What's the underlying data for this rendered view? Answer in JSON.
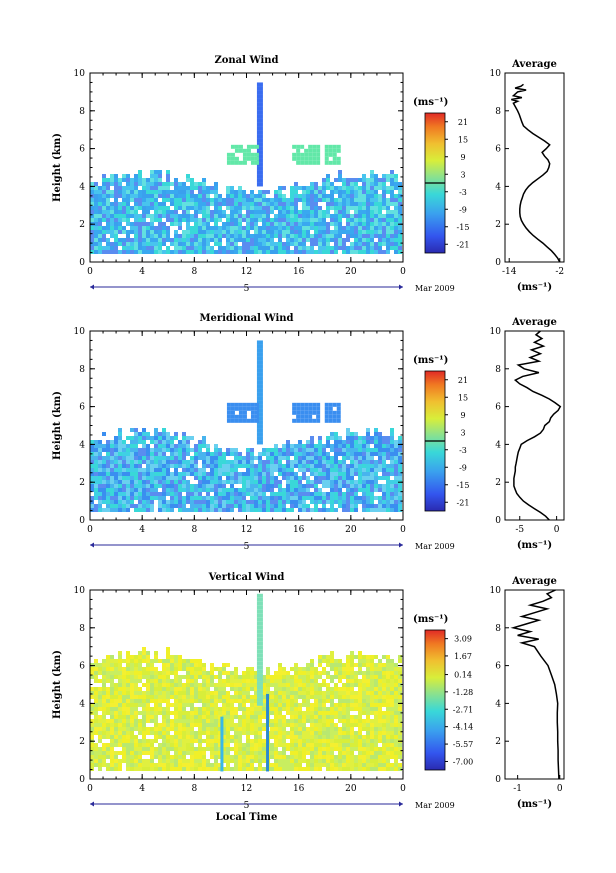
{
  "chart_data": [
    {
      "type": "heatmap",
      "title": "Zonal Wind",
      "ylabel": "Height (km)",
      "xticks": [
        "0",
        "4",
        "8",
        "12",
        "16",
        "20",
        "0"
      ],
      "yticks": [
        "0",
        "2",
        "4",
        "6",
        "8",
        "10"
      ],
      "xlim": [
        0,
        24
      ],
      "ylim": [
        0,
        10
      ],
      "date_day": "5",
      "date_label": "Mar 2009",
      "colorbar": {
        "unit": "(ms⁻¹)",
        "ticks": [
          "21",
          "15",
          "9",
          "3",
          "-3",
          "-9",
          "-15",
          "-21"
        ],
        "range": [
          -24,
          24
        ],
        "contour_level": 0
      },
      "average_panel": {
        "title": "Average",
        "xticks": [
          "-14",
          "-2"
        ],
        "xtick_values": [
          -14,
          -2
        ],
        "xlim": [
          -15,
          -1
        ],
        "xlabel": "(ms⁻¹)",
        "yticks": [
          "0",
          "2",
          "4",
          "6",
          "8",
          "10"
        ],
        "profile": [
          [
            0.0,
            -2.0
          ],
          [
            0.2,
            -2.5
          ],
          [
            0.4,
            -3.2
          ],
          [
            0.6,
            -4.0
          ],
          [
            0.8,
            -5.0
          ],
          [
            1.0,
            -6.0
          ],
          [
            1.2,
            -7.2
          ],
          [
            1.4,
            -8.3
          ],
          [
            1.6,
            -9.2
          ],
          [
            1.8,
            -10.0
          ],
          [
            2.0,
            -10.6
          ],
          [
            2.2,
            -11.1
          ],
          [
            2.4,
            -11.4
          ],
          [
            2.6,
            -11.5
          ],
          [
            2.8,
            -11.5
          ],
          [
            3.0,
            -11.4
          ],
          [
            3.2,
            -11.2
          ],
          [
            3.4,
            -10.9
          ],
          [
            3.6,
            -10.6
          ],
          [
            3.8,
            -10.1
          ],
          [
            4.0,
            -9.4
          ],
          [
            4.2,
            -8.4
          ],
          [
            4.4,
            -7.2
          ],
          [
            4.6,
            -6.0
          ],
          [
            4.8,
            -5.0
          ],
          [
            5.0,
            -4.6
          ],
          [
            5.2,
            -4.4
          ],
          [
            5.4,
            -4.8
          ],
          [
            5.6,
            -5.6
          ],
          [
            5.8,
            -6.2
          ],
          [
            6.0,
            -5.2
          ],
          [
            6.2,
            -4.4
          ],
          [
            6.4,
            -5.6
          ],
          [
            6.6,
            -7.0
          ],
          [
            6.8,
            -8.4
          ],
          [
            7.0,
            -9.6
          ],
          [
            7.2,
            -10.6
          ],
          [
            7.4,
            -11.0
          ],
          [
            7.6,
            -11.3
          ],
          [
            7.8,
            -11.6
          ],
          [
            8.0,
            -12.0
          ],
          [
            8.2,
            -12.5
          ],
          [
            8.4,
            -13.0
          ],
          [
            8.5,
            -12.0
          ],
          [
            8.6,
            -13.5
          ],
          [
            8.7,
            -11.0
          ],
          [
            8.8,
            -13.0
          ],
          [
            9.0,
            -12.0
          ],
          [
            9.1,
            -10.0
          ],
          [
            9.2,
            -12.6
          ],
          [
            9.3,
            -11.2
          ],
          [
            9.4,
            -10.6
          ]
        ]
      }
    },
    {
      "type": "heatmap",
      "title": "Meridional Wind",
      "ylabel": "Height (km)",
      "xticks": [
        "0",
        "4",
        "8",
        "12",
        "16",
        "20",
        "0"
      ],
      "yticks": [
        "0",
        "2",
        "4",
        "6",
        "8",
        "10"
      ],
      "xlim": [
        0,
        24
      ],
      "ylim": [
        0,
        10
      ],
      "date_day": "5",
      "date_label": "Mar 2009",
      "colorbar": {
        "unit": "(ms⁻¹)",
        "ticks": [
          "21",
          "15",
          "9",
          "3",
          "-3",
          "-9",
          "-15",
          "-21"
        ],
        "range": [
          -24,
          24
        ],
        "contour_level": 0
      },
      "average_panel": {
        "title": "Average",
        "xticks": [
          "-5",
          "0"
        ],
        "xtick_values": [
          -5,
          0
        ],
        "xlim": [
          -7,
          1
        ],
        "xlabel": "(ms⁻¹)",
        "yticks": [
          "0",
          "2",
          "4",
          "6",
          "8",
          "10"
        ],
        "profile": [
          [
            0.0,
            -1.0
          ],
          [
            0.2,
            -1.5
          ],
          [
            0.4,
            -2.2
          ],
          [
            0.6,
            -3.0
          ],
          [
            0.8,
            -3.8
          ],
          [
            1.0,
            -4.5
          ],
          [
            1.2,
            -5.0
          ],
          [
            1.4,
            -5.4
          ],
          [
            1.6,
            -5.6
          ],
          [
            1.8,
            -5.8
          ],
          [
            2.0,
            -5.8
          ],
          [
            2.2,
            -5.8
          ],
          [
            2.4,
            -5.7
          ],
          [
            2.6,
            -5.6
          ],
          [
            2.8,
            -5.6
          ],
          [
            3.0,
            -5.5
          ],
          [
            3.2,
            -5.4
          ],
          [
            3.4,
            -5.3
          ],
          [
            3.6,
            -5.2
          ],
          [
            3.8,
            -5.0
          ],
          [
            4.0,
            -4.8
          ],
          [
            4.2,
            -4.0
          ],
          [
            4.4,
            -3.0
          ],
          [
            4.6,
            -2.2
          ],
          [
            4.8,
            -1.8
          ],
          [
            5.0,
            -1.6
          ],
          [
            5.2,
            -1.0
          ],
          [
            5.4,
            -0.8
          ],
          [
            5.6,
            -0.4
          ],
          [
            5.8,
            0.2
          ],
          [
            6.0,
            0.5
          ],
          [
            6.2,
            -0.2
          ],
          [
            6.4,
            -1.0
          ],
          [
            6.6,
            -2.0
          ],
          [
            6.8,
            -3.2
          ],
          [
            7.0,
            -4.0
          ],
          [
            7.2,
            -5.0
          ],
          [
            7.4,
            -5.6
          ],
          [
            7.6,
            -4.6
          ],
          [
            7.8,
            -2.4
          ],
          [
            8.0,
            -4.4
          ],
          [
            8.2,
            -5.2
          ],
          [
            8.4,
            -2.4
          ],
          [
            8.6,
            -3.6
          ],
          [
            8.8,
            -2.2
          ],
          [
            9.0,
            -3.4
          ],
          [
            9.2,
            -1.8
          ],
          [
            9.4,
            -3.0
          ],
          [
            9.6,
            -2.0
          ],
          [
            9.8,
            -2.8
          ],
          [
            10.0,
            -2.2
          ]
        ]
      }
    },
    {
      "type": "heatmap",
      "title": "Vertical Wind",
      "ylabel": "Height (km)",
      "xlabel": "Local Time",
      "xticks": [
        "0",
        "4",
        "8",
        "12",
        "16",
        "20",
        "0"
      ],
      "yticks": [
        "0",
        "2",
        "4",
        "6",
        "8",
        "10"
      ],
      "xlim": [
        0,
        24
      ],
      "ylim": [
        0,
        10
      ],
      "date_day": "5",
      "date_label": "Mar 2009",
      "colorbar": {
        "unit": "(ms⁻¹)",
        "ticks": [
          "3.09",
          "1.67",
          "0.14",
          "-1.28",
          "-2.71",
          "-4.14",
          "-5.57",
          "-7.00"
        ],
        "range": [
          -7.7,
          3.8
        ]
      },
      "average_panel": {
        "title": "Average",
        "xticks": [
          "-1",
          "0"
        ],
        "xtick_values": [
          -1,
          0
        ],
        "xlim": [
          -1.3,
          0.1
        ],
        "xlabel": "(ms⁻¹)",
        "yticks": [
          "0",
          "2",
          "4",
          "6",
          "8",
          "10"
        ],
        "profile": [
          [
            0.0,
            -0.02
          ],
          [
            0.5,
            -0.03
          ],
          [
            1.0,
            -0.04
          ],
          [
            1.5,
            -0.04
          ],
          [
            2.0,
            -0.05
          ],
          [
            2.5,
            -0.05
          ],
          [
            3.0,
            -0.06
          ],
          [
            3.5,
            -0.06
          ],
          [
            4.0,
            -0.05
          ],
          [
            4.5,
            -0.08
          ],
          [
            5.0,
            -0.12
          ],
          [
            5.5,
            -0.2
          ],
          [
            6.0,
            -0.28
          ],
          [
            6.5,
            -0.45
          ],
          [
            7.0,
            -0.6
          ],
          [
            7.2,
            -0.9
          ],
          [
            7.4,
            -0.5
          ],
          [
            7.6,
            -1.0
          ],
          [
            7.8,
            -0.7
          ],
          [
            8.0,
            -1.1
          ],
          [
            8.2,
            -0.8
          ],
          [
            8.4,
            -0.5
          ],
          [
            8.6,
            -0.9
          ],
          [
            8.8,
            -0.6
          ],
          [
            9.0,
            -0.3
          ],
          [
            9.2,
            -0.7
          ],
          [
            9.4,
            -0.4
          ],
          [
            9.6,
            -0.2
          ],
          [
            9.8,
            -0.3
          ],
          [
            10.0,
            -0.1
          ]
        ]
      }
    }
  ]
}
